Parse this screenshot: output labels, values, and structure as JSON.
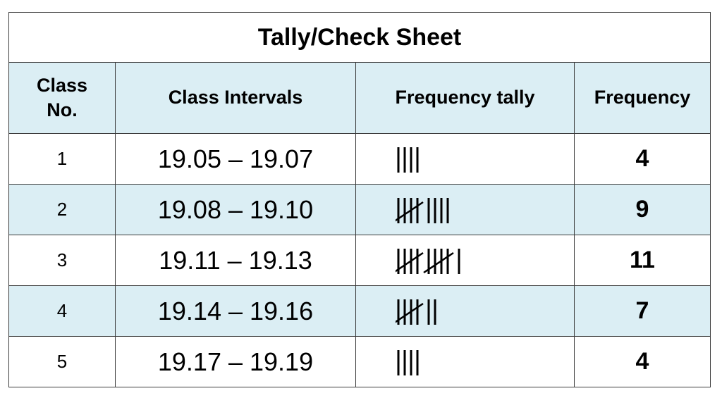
{
  "title": "Tally/Check Sheet",
  "headers": {
    "class_no": "Class No.",
    "class_no_line1": "Class",
    "class_no_line2": "No.",
    "class_intervals": "Class Intervals",
    "frequency_tally": "Frequency tally",
    "frequency": "Frequency"
  },
  "rows": [
    {
      "class_no": "1",
      "interval": "19.05 – 19.07",
      "tally_count": 4,
      "frequency": "4"
    },
    {
      "class_no": "2",
      "interval": "19.08 – 19.10",
      "tally_count": 9,
      "frequency": "9"
    },
    {
      "class_no": "3",
      "interval": "19.11 – 19.13",
      "tally_count": 11,
      "frequency": "11"
    },
    {
      "class_no": "4",
      "interval": "19.14 – 19.16",
      "tally_count": 7,
      "frequency": "7"
    },
    {
      "class_no": "5",
      "interval": "19.17 – 19.19",
      "tally_count": 4,
      "frequency": "4"
    }
  ],
  "colors": {
    "header_fill": "#dbeef4",
    "border": "#3a3a3a"
  }
}
